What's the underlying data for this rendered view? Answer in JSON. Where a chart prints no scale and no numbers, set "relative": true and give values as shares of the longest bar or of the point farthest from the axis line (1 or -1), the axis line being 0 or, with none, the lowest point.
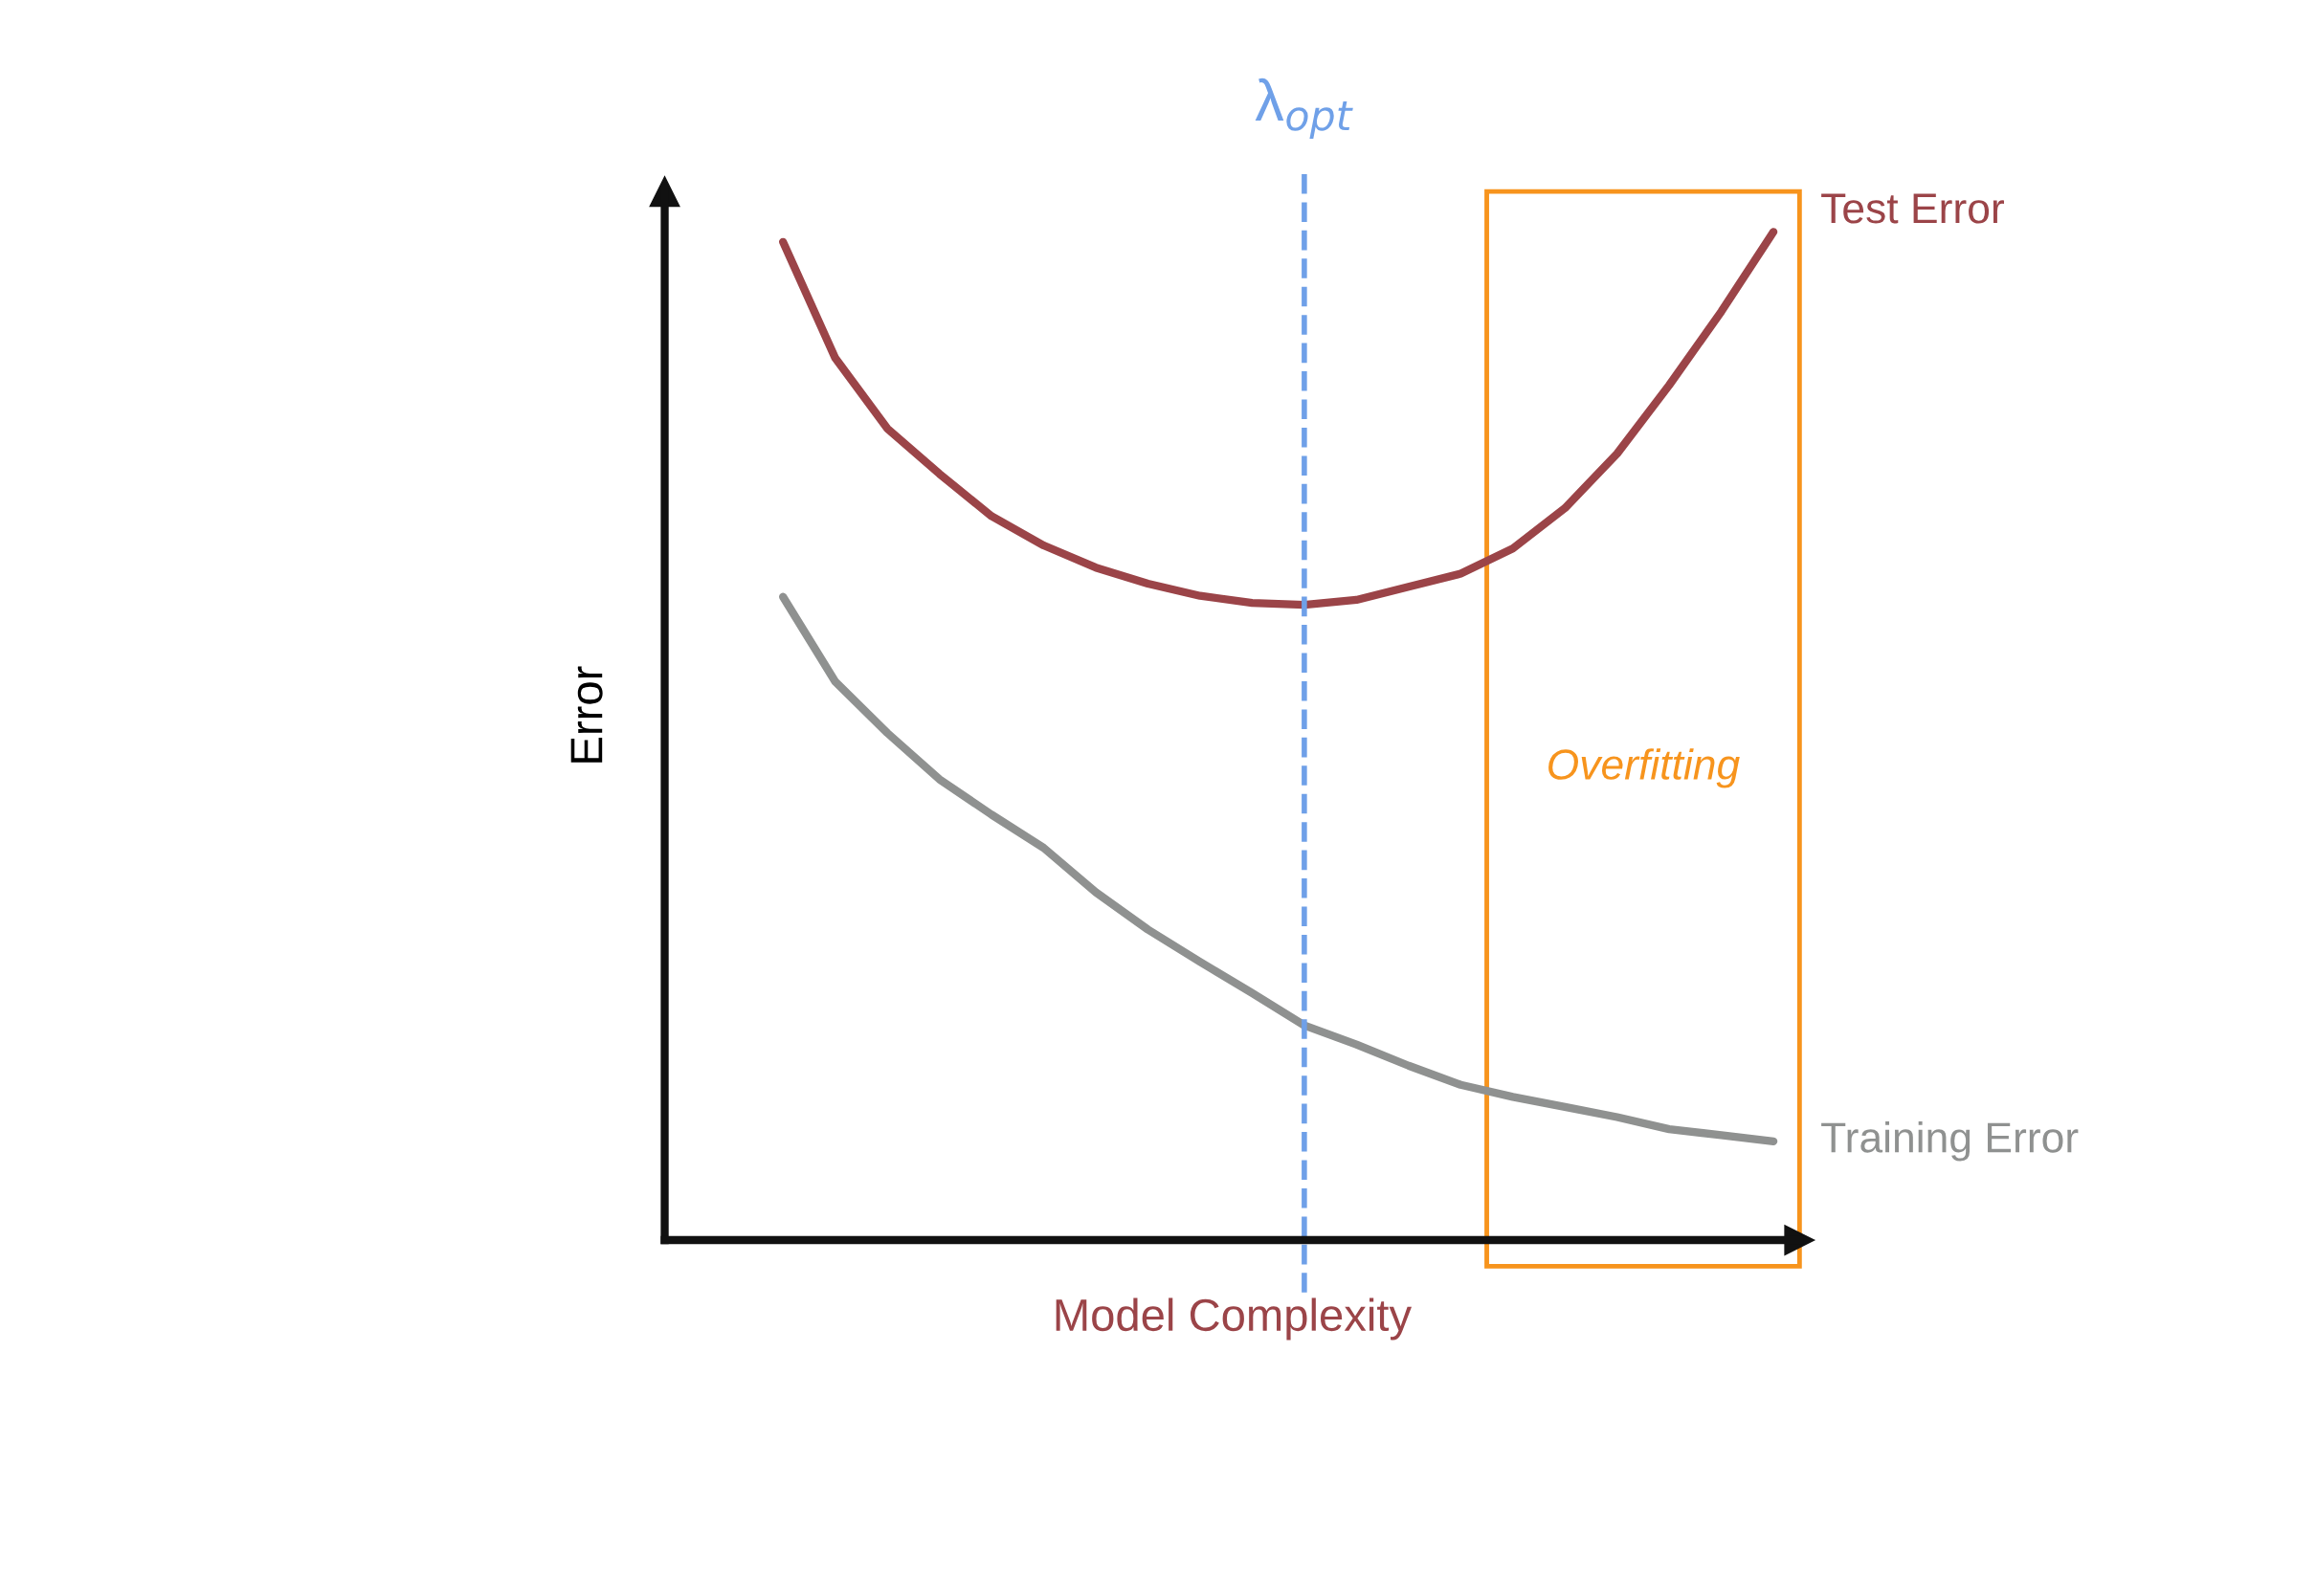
{
  "chart_data": {
    "type": "line",
    "relative": true,
    "xlabel": "Model Complexity",
    "ylabel": "Error",
    "legend": false,
    "marker": "none",
    "line_style": "solid",
    "categories": [
      null,
      null,
      null,
      null,
      null,
      null,
      null,
      null,
      null,
      null,
      null,
      null,
      null,
      null,
      null,
      null,
      null,
      null,
      null,
      null
    ],
    "series": [
      {
        "name": "Test Error",
        "color": "#9b4448",
        "values": [
          0.99,
          0.875,
          0.805,
          0.76,
          0.718,
          0.689,
          0.667,
          0.651,
          0.639,
          0.632,
          0.63,
          0.635,
          0.648,
          0.661,
          0.686,
          0.726,
          0.78,
          0.848,
          0.921,
          1.0
        ]
      },
      {
        "name": "Training Error",
        "color": "#8f9190",
        "values": [
          0.638,
          0.554,
          0.503,
          0.457,
          0.422,
          0.389,
          0.345,
          0.308,
          0.276,
          0.245,
          0.213,
          0.194,
          0.173,
          0.154,
          0.142,
          0.132,
          0.122,
          0.11,
          0.104,
          0.098
        ]
      }
    ],
    "annotations": [
      "λ$_{opt}$",
      "Overfitting"
    ]
  }
}
